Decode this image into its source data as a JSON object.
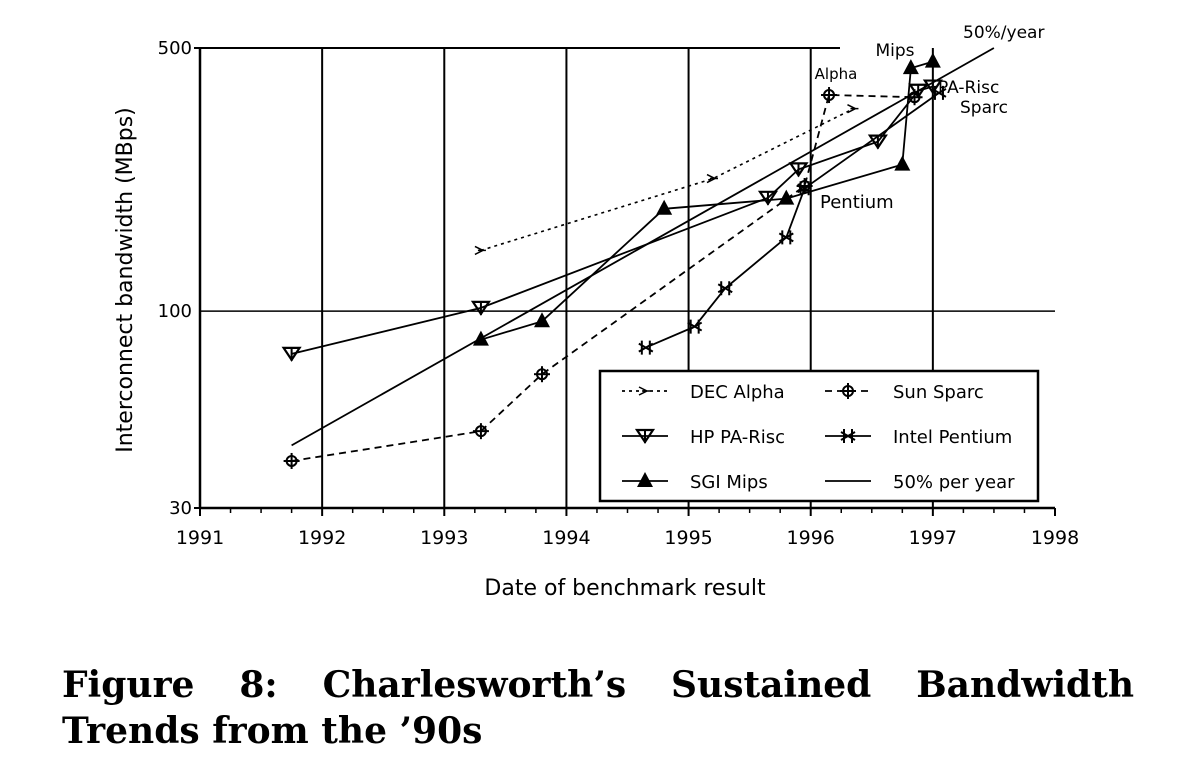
{
  "chart_data": {
    "type": "line",
    "xlabel": "Date of benchmark result",
    "ylabel": "Interconnect bandwidth (MBps)",
    "yscale": "log",
    "xlim": [
      1991,
      1998
    ],
    "ylim": [
      30,
      500
    ],
    "x_ticks": [
      "1991",
      "1992",
      "1993",
      "1994",
      "1995",
      "1996",
      "1997",
      "1998"
    ],
    "y_ticks": [
      "30",
      "100",
      "500"
    ],
    "grid": true,
    "legend_position": "bottom-right",
    "series": [
      {
        "name": "DEC Alpha",
        "style": "dotted",
        "marker": "open-arrow",
        "points": [
          [
            1993.3,
            145
          ],
          [
            1995.2,
            225
          ],
          [
            1996.35,
            345
          ]
        ]
      },
      {
        "name": "HP PA-Risc",
        "style": "solid",
        "marker": "down-triangle",
        "points": [
          [
            1991.75,
            77
          ],
          [
            1993.3,
            102
          ],
          [
            1995.65,
            200
          ],
          [
            1995.9,
            238
          ],
          [
            1996.55,
            282
          ],
          [
            1996.88,
            385
          ],
          [
            1997.0,
            395
          ]
        ]
      },
      {
        "name": "SGI Mips",
        "style": "solid",
        "marker": "filled-triangle",
        "points": [
          [
            1993.3,
            84
          ],
          [
            1993.8,
            94
          ],
          [
            1994.8,
            187
          ],
          [
            1995.8,
            199
          ],
          [
            1996.75,
            245
          ],
          [
            1996.82,
            442
          ],
          [
            1997.0,
            460
          ]
        ]
      },
      {
        "name": "Sun Sparc",
        "style": "dashed",
        "marker": "crossed-circle",
        "points": [
          [
            1991.75,
            40
          ],
          [
            1993.3,
            48
          ],
          [
            1993.8,
            68
          ],
          [
            1995.95,
            215
          ],
          [
            1996.15,
            375
          ],
          [
            1996.85,
            370
          ]
        ]
      },
      {
        "name": "Intel Pentium",
        "style": "solid",
        "marker": "star",
        "points": [
          [
            1994.65,
            80
          ],
          [
            1995.05,
            91
          ],
          [
            1995.3,
            115
          ],
          [
            1995.8,
            157
          ],
          [
            1995.95,
            212
          ],
          [
            1997.05,
            380
          ]
        ]
      },
      {
        "name": "50% per year",
        "style": "solid",
        "marker": "none",
        "points": [
          [
            1991.75,
            44
          ],
          [
            1997.5,
            500
          ]
        ]
      }
    ],
    "annotations": [
      {
        "text": "Mips"
      },
      {
        "text": "Alpha"
      },
      {
        "text": "PA-Risc"
      },
      {
        "text": "Sparc"
      },
      {
        "text": "Pentium"
      },
      {
        "text": "50%/year"
      }
    ],
    "legend_entries": [
      "DEC Alpha",
      "Sun Sparc",
      "HP PA-Risc",
      "Intel Pentium",
      "SGI Mips",
      "50% per year"
    ]
  },
  "caption": {
    "line1": "Figure 8: Charlesworth’s Sustained Bandwidth",
    "line2": "Trends from the ’90s"
  }
}
